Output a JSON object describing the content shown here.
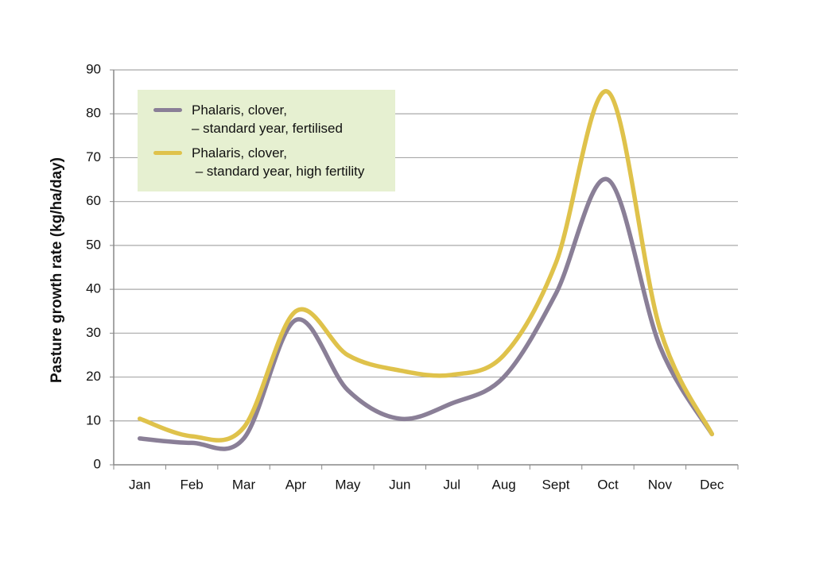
{
  "chart_data": {
    "type": "line",
    "y_label": "Pasture growth rate (kg/ha/day)",
    "categories": [
      "Jan",
      "Feb",
      "Mar",
      "Apr",
      "May",
      "Jun",
      "Jul",
      "Aug",
      "Sept",
      "Oct",
      "Nov",
      "Dec"
    ],
    "series": [
      {
        "name": "Phalaris, clover,\n– standard year, fertilised",
        "color": "#8a7f97",
        "values": [
          6,
          5,
          6,
          33,
          17,
          10.5,
          14,
          20,
          39,
          65,
          27,
          7
        ]
      },
      {
        "name": "Phalaris, clover,\n – standard year, high fertility",
        "color": "#dfc24b",
        "values": [
          10.5,
          6.5,
          8.5,
          35,
          25,
          21.5,
          20.5,
          25,
          46,
          85,
          31,
          7
        ]
      }
    ],
    "ylim": [
      0,
      90
    ],
    "yticks": [
      0,
      10,
      20,
      30,
      40,
      50,
      60,
      70,
      80,
      90
    ],
    "grid": true,
    "smooth": true,
    "legend": "top-left"
  }
}
